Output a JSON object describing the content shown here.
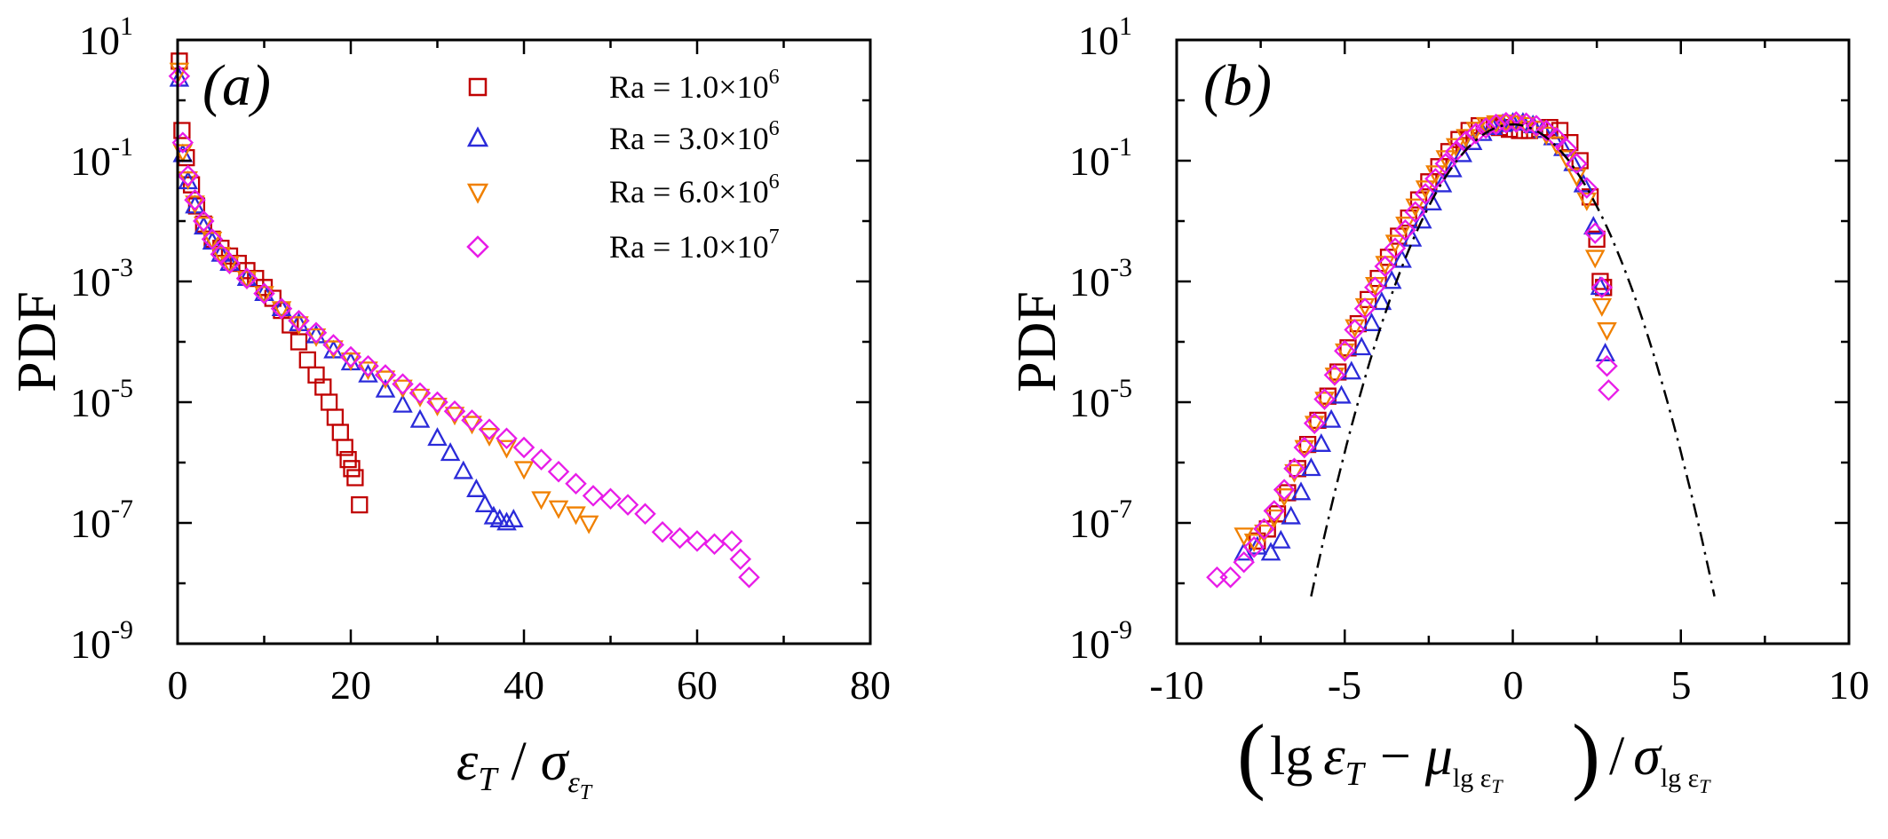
{
  "chart_data": [
    {
      "type": "scatter",
      "panel_label": "(a)",
      "ylabel": "PDF",
      "xlabel": "εT / σεT",
      "xlabel_parts": {
        "num": "ε",
        "num_sub": "T",
        "slash": "/",
        "den": "σ",
        "den_sub": "ε",
        "den_subsub": "T"
      },
      "y_scale": "log",
      "xlim": [
        0,
        80
      ],
      "ylim_exp": [
        -9,
        1
      ],
      "x_ticks": [
        "0",
        "20",
        "40",
        "60",
        "80"
      ],
      "y_ticks": [
        {
          "base": "10",
          "exp": "1"
        },
        {
          "base": "10",
          "exp": "-1"
        },
        {
          "base": "10",
          "exp": "-3"
        },
        {
          "base": "10",
          "exp": "-5"
        },
        {
          "base": "10",
          "exp": "-7"
        },
        {
          "base": "10",
          "exp": "-9"
        }
      ],
      "legend": {
        "position": "top-right"
      },
      "series": [
        {
          "name": "Ra = 1.0×10^6",
          "label_main": "Ra = 1.0×10",
          "label_exp": "6",
          "marker": "square",
          "color": "#C00000",
          "x": [
            0.2,
            0.5,
            1.0,
            1.6,
            2.2,
            3,
            4,
            5,
            6,
            7,
            8,
            9,
            10,
            11,
            12,
            13,
            14,
            15,
            16,
            16.8,
            17.5,
            18.2,
            18.8,
            19.3,
            19.7,
            20.1,
            20.5,
            21.0
          ],
          "y_exp": [
            0.65,
            -0.5,
            -0.95,
            -1.4,
            -1.75,
            -2.05,
            -2.3,
            -2.45,
            -2.58,
            -2.7,
            -2.82,
            -2.95,
            -3.1,
            -3.28,
            -3.48,
            -3.72,
            -4.0,
            -4.3,
            -4.55,
            -4.75,
            -5.0,
            -5.25,
            -5.5,
            -5.75,
            -5.95,
            -6.1,
            -6.25,
            -6.7
          ]
        },
        {
          "name": "Ra = 3.0×10^6",
          "label_main": "Ra = 3.0×10",
          "label_exp": "6",
          "marker": "triangle-up",
          "color": "#2B2BD9",
          "x": [
            0.2,
            0.6,
            1.2,
            2,
            3,
            4,
            5,
            6,
            8,
            10,
            12,
            14,
            16,
            18,
            20,
            22,
            24,
            26,
            28,
            30,
            31.5,
            33,
            34.5,
            35.5,
            36.5,
            37.2,
            38,
            38.8
          ],
          "y_exp": [
            0.35,
            -0.9,
            -1.35,
            -1.75,
            -2.1,
            -2.35,
            -2.55,
            -2.7,
            -2.95,
            -3.2,
            -3.45,
            -3.7,
            -3.9,
            -4.15,
            -4.35,
            -4.55,
            -4.8,
            -5.05,
            -5.3,
            -5.6,
            -5.85,
            -6.15,
            -6.45,
            -6.7,
            -6.9,
            -6.95,
            -7.0,
            -6.95
          ]
        },
        {
          "name": "Ra = 6.0×10^6",
          "label_main": "Ra = 6.0×10",
          "label_exp": "6",
          "marker": "triangle-down",
          "color": "#F08000",
          "x": [
            0.2,
            0.6,
            1.2,
            2,
            3,
            4,
            5,
            6,
            8,
            10,
            12,
            14,
            16,
            18,
            20,
            22,
            24,
            26,
            28,
            30,
            32,
            34,
            36,
            38,
            40,
            42,
            44,
            46,
            47.5
          ],
          "y_exp": [
            0.5,
            -0.85,
            -1.3,
            -1.7,
            -2.05,
            -2.3,
            -2.55,
            -2.7,
            -2.95,
            -3.2,
            -3.45,
            -3.7,
            -3.9,
            -4.1,
            -4.3,
            -4.45,
            -4.6,
            -4.75,
            -4.9,
            -5.05,
            -5.2,
            -5.35,
            -5.55,
            -5.75,
            -6.1,
            -6.6,
            -6.75,
            -6.85,
            -7.0
          ]
        },
        {
          "name": "Ra = 1.0×10^7",
          "label_main": "Ra = 1.0×10",
          "label_exp": "7",
          "marker": "diamond",
          "color": "#E81CE8",
          "x": [
            0.2,
            0.6,
            1.2,
            2,
            3,
            4,
            5,
            6,
            8,
            10,
            12,
            14,
            16,
            18,
            20,
            22,
            24,
            26,
            28,
            30,
            32,
            34,
            36,
            38,
            40,
            42,
            44,
            46,
            48,
            50,
            52,
            54,
            56,
            58,
            60,
            62,
            64,
            65,
            66
          ],
          "y_exp": [
            0.4,
            -0.7,
            -1.25,
            -1.65,
            -2.0,
            -2.3,
            -2.55,
            -2.7,
            -2.95,
            -3.2,
            -3.45,
            -3.65,
            -3.85,
            -4.05,
            -4.25,
            -4.4,
            -4.55,
            -4.7,
            -4.85,
            -5.0,
            -5.15,
            -5.3,
            -5.45,
            -5.6,
            -5.75,
            -5.95,
            -6.15,
            -6.35,
            -6.55,
            -6.6,
            -6.7,
            -6.85,
            -7.15,
            -7.25,
            -7.3,
            -7.35,
            -7.3,
            -7.6,
            -7.9
          ]
        }
      ]
    },
    {
      "type": "scatter",
      "panel_label": "(b)",
      "ylabel": "PDF",
      "xlabel": "(lg εT − μlg εT) / σlg εT",
      "xlabel_parts": {
        "lg": "lg",
        "eps": "ε",
        "eps_sub": "T",
        "minus": "−",
        "mu": "μ",
        "mu_sub": "lg ε",
        "mu_subsub": "T",
        "slash": "/",
        "sigma": "σ",
        "sigma_sub": "lg ε",
        "sigma_subsub": "T"
      },
      "y_scale": "log",
      "xlim": [
        -10,
        10
      ],
      "ylim_exp": [
        -9,
        1
      ],
      "x_ticks": [
        "-10",
        "-5",
        "0",
        "5",
        "10"
      ],
      "y_ticks": [
        {
          "base": "10",
          "exp": "1"
        },
        {
          "base": "10",
          "exp": "-1"
        },
        {
          "base": "10",
          "exp": "-3"
        },
        {
          "base": "10",
          "exp": "-5"
        },
        {
          "base": "10",
          "exp": "-7"
        },
        {
          "base": "10",
          "exp": "-9"
        }
      ],
      "series": [
        {
          "name": "Ra = 1.0×10^6",
          "marker": "square",
          "color": "#C00000",
          "x": [
            -7.6,
            -7.3,
            -7.0,
            -6.7,
            -6.4,
            -6.1,
            -5.8,
            -5.5,
            -5.2,
            -4.9,
            -4.6,
            -4.3,
            -4.0,
            -3.7,
            -3.4,
            -3.1,
            -2.8,
            -2.5,
            -2.2,
            -1.9,
            -1.6,
            -1.3,
            -1.0,
            -0.7,
            -0.4,
            -0.1,
            0.2,
            0.5,
            0.8,
            1.1,
            1.4,
            1.7,
            2.0,
            2.3,
            2.5,
            2.6,
            2.7
          ],
          "y_exp": [
            -7.3,
            -7.1,
            -6.85,
            -6.5,
            -6.1,
            -5.7,
            -5.3,
            -4.9,
            -4.5,
            -4.1,
            -3.7,
            -3.3,
            -2.95,
            -2.6,
            -2.25,
            -1.95,
            -1.65,
            -1.35,
            -1.1,
            -0.85,
            -0.65,
            -0.5,
            -0.42,
            -0.42,
            -0.45,
            -0.48,
            -0.5,
            -0.5,
            -0.48,
            -0.45,
            -0.5,
            -0.7,
            -1.0,
            -1.6,
            -2.3,
            -3.0,
            -3.1
          ]
        },
        {
          "name": "Ra = 3.0×10^6",
          "marker": "triangle-up",
          "color": "#2B2BD9",
          "x": [
            -8.0,
            -7.6,
            -7.2,
            -6.9,
            -6.6,
            -6.3,
            -6.0,
            -5.7,
            -5.4,
            -5.1,
            -4.8,
            -4.5,
            -4.2,
            -3.9,
            -3.6,
            -3.3,
            -3.0,
            -2.7,
            -2.4,
            -2.1,
            -1.8,
            -1.5,
            -1.2,
            -0.9,
            -0.6,
            -0.3,
            0.0,
            0.3,
            0.6,
            0.9,
            1.2,
            1.5,
            1.8,
            2.1,
            2.4,
            2.6,
            2.75
          ],
          "y_exp": [
            -7.5,
            -7.4,
            -7.5,
            -7.3,
            -6.9,
            -6.5,
            -6.1,
            -5.7,
            -5.3,
            -4.9,
            -4.5,
            -4.1,
            -3.7,
            -3.35,
            -3.0,
            -2.65,
            -2.3,
            -2.0,
            -1.7,
            -1.4,
            -1.15,
            -0.9,
            -0.7,
            -0.55,
            -0.45,
            -0.4,
            -0.38,
            -0.38,
            -0.42,
            -0.5,
            -0.62,
            -0.8,
            -1.05,
            -1.4,
            -2.1,
            -3.1,
            -4.2
          ]
        },
        {
          "name": "Ra = 6.0×10^6",
          "marker": "triangle-down",
          "color": "#F08000",
          "x": [
            -8.0,
            -7.7,
            -7.4,
            -7.1,
            -6.8,
            -6.5,
            -6.2,
            -5.9,
            -5.6,
            -5.3,
            -5.0,
            -4.7,
            -4.4,
            -4.1,
            -3.8,
            -3.5,
            -3.2,
            -2.9,
            -2.6,
            -2.3,
            -2.0,
            -1.7,
            -1.4,
            -1.1,
            -0.8,
            -0.5,
            -0.2,
            0.1,
            0.4,
            0.7,
            1.0,
            1.3,
            1.6,
            1.9,
            2.2,
            2.45,
            2.65,
            2.8
          ],
          "y_exp": [
            -7.2,
            -7.3,
            -7.15,
            -6.9,
            -6.55,
            -6.15,
            -5.75,
            -5.35,
            -4.95,
            -4.55,
            -4.15,
            -3.75,
            -3.4,
            -3.05,
            -2.7,
            -2.35,
            -2.05,
            -1.75,
            -1.45,
            -1.2,
            -0.95,
            -0.75,
            -0.6,
            -0.48,
            -0.4,
            -0.37,
            -0.36,
            -0.37,
            -0.4,
            -0.46,
            -0.56,
            -0.72,
            -0.95,
            -1.25,
            -1.65,
            -2.6,
            -3.4,
            -3.8
          ]
        },
        {
          "name": "Ra = 1.0×10^7",
          "marker": "diamond",
          "color": "#E81CE8",
          "x": [
            -8.8,
            -8.4,
            -8.0,
            -7.7,
            -7.4,
            -7.1,
            -6.8,
            -6.5,
            -6.2,
            -5.9,
            -5.6,
            -5.3,
            -5.0,
            -4.7,
            -4.4,
            -4.1,
            -3.8,
            -3.5,
            -3.2,
            -2.9,
            -2.6,
            -2.3,
            -2.0,
            -1.7,
            -1.4,
            -1.1,
            -0.8,
            -0.5,
            -0.2,
            0.1,
            0.4,
            0.7,
            1.0,
            1.3,
            1.6,
            1.9,
            2.2,
            2.45,
            2.65,
            2.8,
            2.85
          ],
          "y_exp": [
            -7.9,
            -7.9,
            -7.65,
            -7.4,
            -7.1,
            -6.8,
            -6.45,
            -6.1,
            -5.75,
            -5.35,
            -4.95,
            -4.55,
            -4.15,
            -3.8,
            -3.45,
            -3.1,
            -2.75,
            -2.45,
            -2.15,
            -1.85,
            -1.55,
            -1.3,
            -1.05,
            -0.85,
            -0.68,
            -0.55,
            -0.46,
            -0.4,
            -0.37,
            -0.36,
            -0.38,
            -0.42,
            -0.5,
            -0.62,
            -0.8,
            -1.05,
            -1.45,
            -2.2,
            -3.1,
            -4.4,
            -4.8
          ]
        },
        {
          "name": "Gaussian",
          "line_style": "dash-dot",
          "color": "#000000",
          "x_range": [
            -6,
            6
          ],
          "formula": "log10(exp(-x^2/2)/sqrt(2*pi))"
        }
      ]
    }
  ]
}
